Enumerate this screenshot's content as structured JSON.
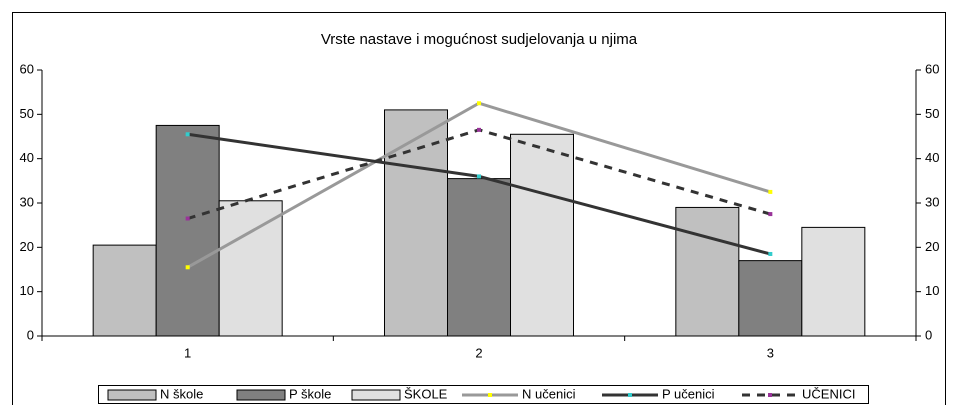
{
  "chart_data": {
    "type": "combo",
    "title": "Vrste nastave i mogućnost sudjelovanja u njima",
    "categories": [
      "1",
      "2",
      "3"
    ],
    "ylim": [
      0,
      60
    ],
    "yticks": [
      0,
      10,
      20,
      30,
      40,
      50,
      60
    ],
    "y2lim": [
      0,
      60
    ],
    "y2ticks": [
      0,
      10,
      20,
      30,
      40,
      50,
      60
    ],
    "series": [
      {
        "name": "N škole",
        "type": "bar",
        "color": "#c0c0c0",
        "values": [
          20.5,
          51,
          29
        ]
      },
      {
        "name": "P škole",
        "type": "bar",
        "color": "#808080",
        "values": [
          47.5,
          35.5,
          17
        ]
      },
      {
        "name": "ŠKOLE",
        "type": "bar",
        "color": "#e0e0e0",
        "values": [
          30.5,
          45.5,
          24.5
        ]
      },
      {
        "name": "N učenici",
        "type": "line",
        "axis": "y2",
        "color": "#999999",
        "marker_color": "#ffff00",
        "dash": false,
        "values": [
          15.5,
          52.5,
          32.5
        ]
      },
      {
        "name": "P učenici",
        "type": "line",
        "axis": "y2",
        "color": "#333333",
        "marker_color": "#33cccc",
        "dash": false,
        "values": [
          45.5,
          36,
          18.5
        ]
      },
      {
        "name": "UČENICI",
        "type": "line",
        "axis": "y2",
        "color": "#333333",
        "marker_color": "#993399",
        "dash": true,
        "values": [
          26.5,
          46.5,
          27.5
        ]
      }
    ]
  }
}
